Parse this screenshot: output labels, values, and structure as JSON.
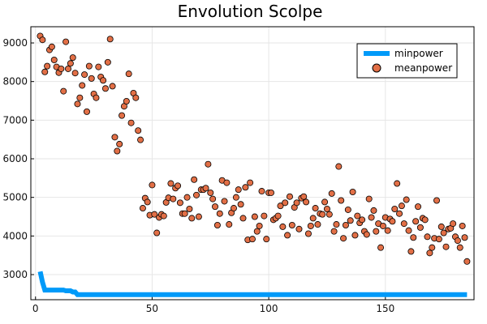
{
  "chart_data": {
    "type": "scatter",
    "title": "Envolution Scolpe",
    "xlabel": "",
    "ylabel": "",
    "xlim": [
      -2,
      188
    ],
    "ylim": [
      2350,
      9420
    ],
    "xticks": [
      0,
      50,
      100,
      150
    ],
    "yticks": [
      3000,
      4000,
      5000,
      6000,
      7000,
      8000,
      9000
    ],
    "grid": true,
    "legend_position": "top-right",
    "colors": {
      "minpower": "#009af9",
      "meanpower": "#e26f46"
    },
    "series": [
      {
        "name": "minpower",
        "kind": "line",
        "x": [
          2,
          3,
          4,
          5,
          6,
          7,
          8,
          9,
          10,
          11,
          12,
          13,
          14,
          15,
          16,
          17,
          18,
          19,
          20,
          185
        ],
        "y": [
          3080,
          2800,
          2600,
          2600,
          2600,
          2600,
          2600,
          2600,
          2600,
          2600,
          2600,
          2580,
          2580,
          2580,
          2550,
          2550,
          2480,
          2480,
          2480,
          2480
        ]
      },
      {
        "name": "meanpower",
        "kind": "scatter",
        "points": [
          [
            2,
            9180
          ],
          [
            3,
            9080
          ],
          [
            4,
            8250
          ],
          [
            5,
            8400
          ],
          [
            6,
            8820
          ],
          [
            7,
            8900
          ],
          [
            8,
            8560
          ],
          [
            9,
            8380
          ],
          [
            10,
            8230
          ],
          [
            11,
            8330
          ],
          [
            12,
            7750
          ],
          [
            13,
            9030
          ],
          [
            14,
            8330
          ],
          [
            15,
            8470
          ],
          [
            16,
            8620
          ],
          [
            17,
            8220
          ],
          [
            18,
            7420
          ],
          [
            19,
            7580
          ],
          [
            20,
            7900
          ],
          [
            21,
            8180
          ],
          [
            22,
            7220
          ],
          [
            23,
            8400
          ],
          [
            24,
            8080
          ],
          [
            25,
            7680
          ],
          [
            26,
            7580
          ],
          [
            27,
            8380
          ],
          [
            28,
            8120
          ],
          [
            29,
            8030
          ],
          [
            30,
            7820
          ],
          [
            31,
            8500
          ],
          [
            32,
            9100
          ],
          [
            33,
            7880
          ],
          [
            34,
            6560
          ],
          [
            35,
            6200
          ],
          [
            36,
            6380
          ],
          [
            37,
            7120
          ],
          [
            38,
            7360
          ],
          [
            39,
            7490
          ],
          [
            40,
            8200
          ],
          [
            41,
            6930
          ],
          [
            42,
            7700
          ],
          [
            43,
            7580
          ],
          [
            44,
            6730
          ],
          [
            45,
            6490
          ],
          [
            46,
            4720
          ],
          [
            47,
            4980
          ],
          [
            48,
            4880
          ],
          [
            49,
            4540
          ],
          [
            50,
            5320
          ],
          [
            51,
            4560
          ],
          [
            52,
            4080
          ],
          [
            53,
            4480
          ],
          [
            54,
            4560
          ],
          [
            55,
            4520
          ],
          [
            56,
            4870
          ],
          [
            57,
            4990
          ],
          [
            58,
            5360
          ],
          [
            59,
            4960
          ],
          [
            60,
            5240
          ],
          [
            61,
            5300
          ],
          [
            62,
            4860
          ],
          [
            63,
            4580
          ],
          [
            64,
            4580
          ],
          [
            65,
            5000
          ],
          [
            66,
            4700
          ],
          [
            67,
            4460
          ],
          [
            68,
            5460
          ],
          [
            69,
            5060
          ],
          [
            70,
            4500
          ],
          [
            71,
            5200
          ],
          [
            72,
            5200
          ],
          [
            73,
            5240
          ],
          [
            74,
            5860
          ],
          [
            75,
            5120
          ],
          [
            76,
            4960
          ],
          [
            77,
            4760
          ],
          [
            78,
            4280
          ],
          [
            79,
            4580
          ],
          [
            80,
            5440
          ],
          [
            81,
            4900
          ],
          [
            82,
            5380
          ],
          [
            83,
            4300
          ],
          [
            84,
            4600
          ],
          [
            85,
            4720
          ],
          [
            86,
            5000
          ],
          [
            87,
            5200
          ],
          [
            88,
            4820
          ],
          [
            89,
            4460
          ],
          [
            90,
            5260
          ],
          [
            91,
            3900
          ],
          [
            92,
            5380
          ],
          [
            93,
            3920
          ],
          [
            94,
            4500
          ],
          [
            95,
            4120
          ],
          [
            96,
            4260
          ],
          [
            97,
            5160
          ],
          [
            98,
            4520
          ],
          [
            99,
            3920
          ],
          [
            100,
            5120
          ],
          [
            101,
            5120
          ],
          [
            102,
            4420
          ],
          [
            103,
            4460
          ],
          [
            104,
            4520
          ],
          [
            105,
            4780
          ],
          [
            106,
            4240
          ],
          [
            107,
            4860
          ],
          [
            108,
            4020
          ],
          [
            109,
            5020
          ],
          [
            110,
            4280
          ],
          [
            111,
            4740
          ],
          [
            112,
            4860
          ],
          [
            113,
            4180
          ],
          [
            114,
            4980
          ],
          [
            115,
            5020
          ],
          [
            116,
            4880
          ],
          [
            117,
            4060
          ],
          [
            118,
            4260
          ],
          [
            119,
            4460
          ],
          [
            120,
            4720
          ],
          [
            121,
            4300
          ],
          [
            122,
            4580
          ],
          [
            123,
            4560
          ],
          [
            124,
            4880
          ],
          [
            125,
            4700
          ],
          [
            126,
            4560
          ],
          [
            127,
            5100
          ],
          [
            128,
            4120
          ],
          [
            129,
            4300
          ],
          [
            130,
            5800
          ],
          [
            131,
            4920
          ],
          [
            132,
            3940
          ],
          [
            133,
            4280
          ],
          [
            134,
            4680
          ],
          [
            135,
            4400
          ],
          [
            136,
            5140
          ],
          [
            137,
            4020
          ],
          [
            138,
            4520
          ],
          [
            139,
            4340
          ],
          [
            140,
            4420
          ],
          [
            141,
            4120
          ],
          [
            142,
            4040
          ],
          [
            143,
            4960
          ],
          [
            144,
            4480
          ],
          [
            145,
            4660
          ],
          [
            146,
            4120
          ],
          [
            147,
            4320
          ],
          [
            148,
            3700
          ],
          [
            149,
            4260
          ],
          [
            150,
            4480
          ],
          [
            151,
            4140
          ],
          [
            152,
            4440
          ],
          [
            153,
            4380
          ],
          [
            154,
            4700
          ],
          [
            155,
            5360
          ],
          [
            156,
            4580
          ],
          [
            157,
            4780
          ],
          [
            158,
            4320
          ],
          [
            159,
            4940
          ],
          [
            160,
            4140
          ],
          [
            161,
            3600
          ],
          [
            162,
            3960
          ],
          [
            163,
            4380
          ],
          [
            164,
            4760
          ],
          [
            165,
            4220
          ],
          [
            166,
            4460
          ],
          [
            167,
            4420
          ],
          [
            168,
            3980
          ],
          [
            169,
            3560
          ],
          [
            170,
            3700
          ],
          [
            171,
            3940
          ],
          [
            172,
            4920
          ],
          [
            173,
            3920
          ],
          [
            174,
            4240
          ],
          [
            175,
            4080
          ],
          [
            176,
            3720
          ],
          [
            177,
            4180
          ],
          [
            178,
            4200
          ],
          [
            179,
            4320
          ],
          [
            180,
            3980
          ],
          [
            181,
            3880
          ],
          [
            182,
            3700
          ],
          [
            183,
            4260
          ],
          [
            184,
            3960
          ],
          [
            185,
            3340
          ]
        ]
      }
    ]
  }
}
